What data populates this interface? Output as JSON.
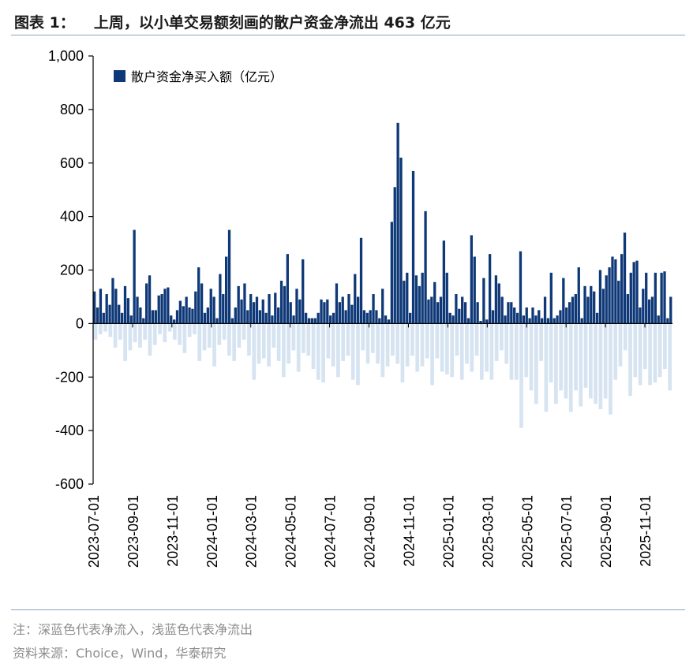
{
  "figure": {
    "label": "图表 1：",
    "title": "上周，以小单交易额刻画的散户资金净流出 463 亿元",
    "note": "注：深蓝色代表净流入，浅蓝色代表净流出",
    "source": "资料来源：Choice，Wind，华泰研究"
  },
  "colors": {
    "inflow": "#0e3877",
    "outflow": "#d6e3f1"
  },
  "chart_data": {
    "type": "bar",
    "legend": "散户资金净买入额（亿元）",
    "legend_position": "top-left",
    "ylim": [
      -600,
      1000
    ],
    "yticks": [
      -600,
      -400,
      -200,
      0,
      200,
      400,
      600,
      800,
      1000
    ],
    "ytick_labels": [
      "-600",
      "-400",
      "-200",
      "0",
      "200",
      "400",
      "600",
      "800",
      "1,000"
    ],
    "grid": false,
    "x_labels": [
      "2023-07-01",
      "2023-09-01",
      "2023-11-01",
      "2024-01-01",
      "2024-03-01",
      "2024-05-01",
      "2024-07-01",
      "2024-09-01",
      "2024-11-01",
      "2025-01-01",
      "2025-03-01",
      "2025-05-01",
      "2025-07-01",
      "2025-09-01",
      "2025-11-01"
    ],
    "x_label_positions": [
      0,
      20,
      40,
      60,
      80,
      100,
      120,
      140,
      160,
      180,
      200,
      220,
      240,
      260,
      280
    ],
    "n_days": 294,
    "inflow": [
      120,
      60,
      130,
      40,
      110,
      70,
      170,
      130,
      70,
      40,
      140,
      95,
      30,
      350,
      100,
      60,
      20,
      150,
      180,
      50,
      50,
      105,
      110,
      130,
      135,
      30,
      15,
      50,
      85,
      65,
      100,
      60,
      55,
      120,
      210,
      150,
      40,
      60,
      130,
      100,
      20,
      185,
      110,
      250,
      350,
      20,
      60,
      140,
      90,
      150,
      50,
      110,
      80,
      100,
      50,
      90,
      40,
      110,
      30,
      115,
      60,
      160,
      140,
      260,
      80,
      30,
      130,
      90,
      240,
      40,
      20,
      20,
      20,
      40,
      90,
      80,
      90,
      30,
      40,
      150,
      80,
      100,
      50,
      110,
      70,
      185,
      100,
      320,
      50,
      40,
      50,
      110,
      50,
      20,
      130,
      30,
      15,
      380,
      510,
      750,
      620,
      160,
      190,
      40,
      570,
      180,
      140,
      190,
      420,
      90,
      100,
      155,
      80,
      100,
      310,
      190,
      40,
      30,
      110,
      55,
      100,
      80,
      20,
      330,
      250,
      80,
      10,
      170,
      15,
      260,
      50,
      180,
      150,
      100,
      30,
      80,
      80,
      60,
      40,
      270,
      30,
      60,
      20,
      60,
      30,
      50,
      20,
      100,
      20,
      190,
      20,
      30,
      50,
      170,
      60,
      80,
      100,
      110,
      210,
      20,
      140,
      100,
      140,
      120,
      40,
      200,
      130,
      180,
      210,
      250,
      240,
      160,
      260,
      340,
      110,
      190,
      230,
      235,
      60,
      130,
      190,
      90,
      100,
      190,
      30,
      190,
      195,
      20,
      100
    ],
    "inflow_start_index": 100,
    "inflow_note": "inflow values are given for trading days starting at the listed start index and spaced roughly every 1.5 days of the axis",
    "outflow": [
      -60,
      -40,
      -30,
      -50,
      -90,
      -60,
      -140,
      -100,
      -70,
      -90,
      -60,
      -120,
      -80,
      -40,
      -70,
      -30,
      -60,
      -80,
      -110,
      -50,
      -40,
      -140,
      -100,
      -90,
      -160,
      -80,
      -60,
      -120,
      -140,
      -90,
      -60,
      -120,
      -210,
      -150,
      -130,
      -160,
      -90,
      -140,
      -200,
      -150,
      -100,
      -180,
      -110,
      -120,
      -170,
      -210,
      -220,
      -130,
      -160,
      -200,
      -140,
      -120,
      -210,
      -230,
      -100,
      -150,
      -110,
      -150,
      -200,
      -160,
      -120,
      -150,
      -220,
      -160,
      -120,
      -180,
      -160,
      -130,
      -230,
      -130,
      -180,
      -190,
      -200,
      -120,
      -210,
      -150,
      -180,
      -120,
      -210,
      -180,
      -210,
      -140,
      -100,
      -150,
      -210,
      -210,
      -390,
      -200,
      -250,
      -300,
      -140,
      -330,
      -220,
      -300,
      -250,
      -280,
      -330,
      -250,
      -310,
      -240,
      -280,
      -300,
      -320,
      -280,
      -340,
      -210,
      -160,
      -100,
      -270,
      -200,
      -230,
      -170,
      -230,
      -220,
      -200,
      -170,
      -250
    ]
  }
}
